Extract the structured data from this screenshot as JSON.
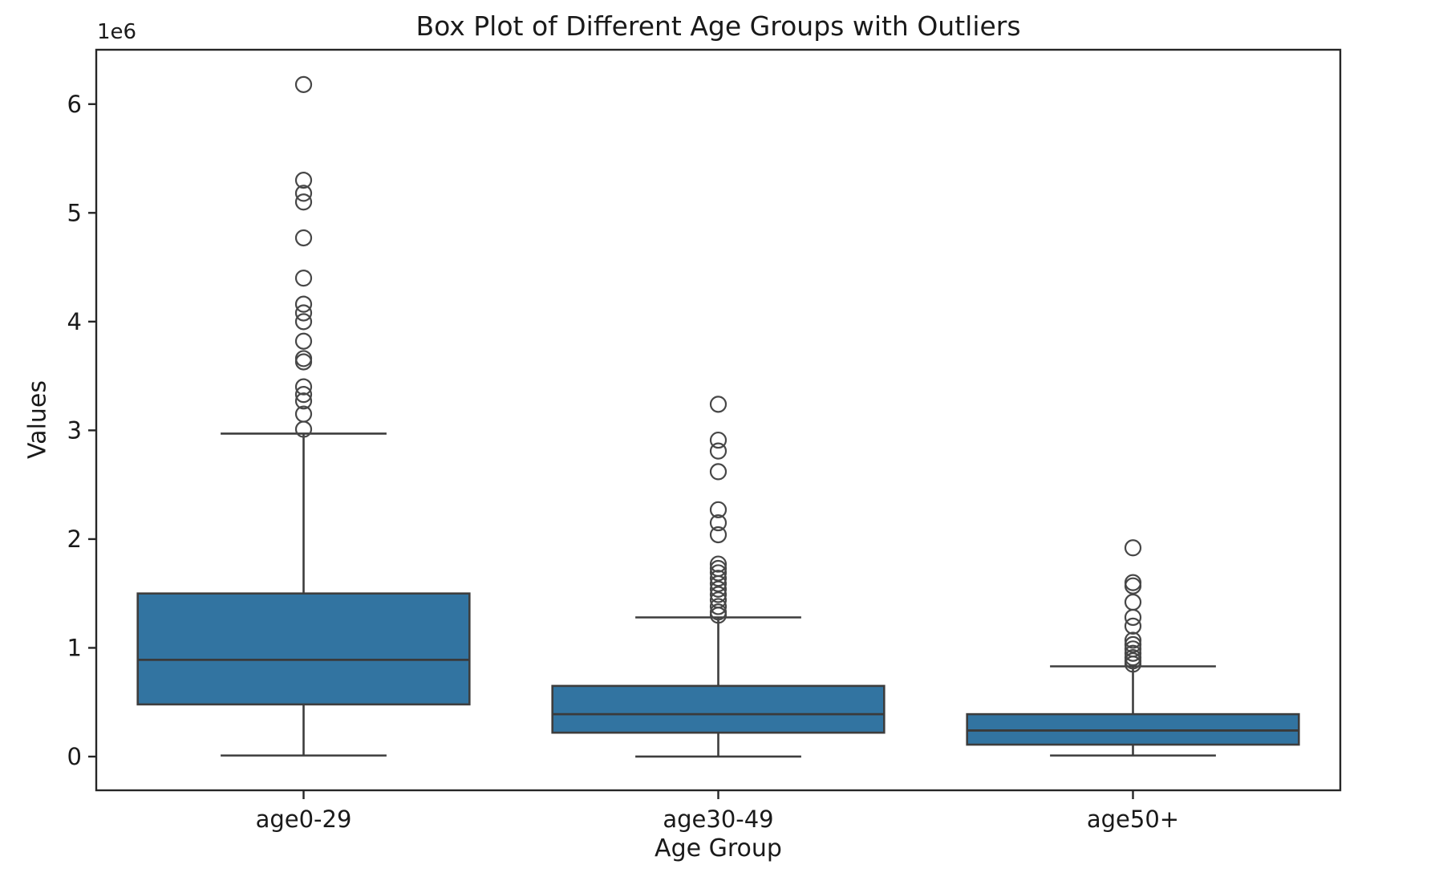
{
  "chart_data": {
    "type": "box",
    "title": "Box Plot of Different Age Groups with Outliers",
    "xlabel": "Age Group",
    "ylabel": "Values",
    "y_offset_text": "1e6",
    "values_unit_multiplier": 1000000,
    "categories": [
      "age0-29",
      "age30-49",
      "age50+"
    ],
    "positions": [
      0,
      1,
      2
    ],
    "xlim": [
      -0.5,
      2.5
    ],
    "ylim": [
      -0.31,
      6.5
    ],
    "yticks": [
      0,
      1,
      2,
      3,
      4,
      5,
      6
    ],
    "box_width": 0.8,
    "grid": false,
    "legend": null,
    "series": [
      {
        "name": "age0-29",
        "whislo": 0.01,
        "q1": 0.48,
        "med": 0.89,
        "q3": 1.5,
        "whishi": 2.97,
        "fliers": [
          3.01,
          3.15,
          3.27,
          3.33,
          3.4,
          3.63,
          3.66,
          3.82,
          4.0,
          4.08,
          4.16,
          4.4,
          4.77,
          5.1,
          5.18,
          5.3,
          6.18
        ]
      },
      {
        "name": "age30-49",
        "whislo": 0.0,
        "q1": 0.22,
        "med": 0.39,
        "q3": 0.65,
        "whishi": 1.28,
        "fliers": [
          1.3,
          1.33,
          1.38,
          1.44,
          1.49,
          1.54,
          1.59,
          1.64,
          1.69,
          1.73,
          1.77,
          2.04,
          2.15,
          2.27,
          2.62,
          2.81,
          2.91,
          3.24
        ]
      },
      {
        "name": "age50+",
        "whislo": 0.01,
        "q1": 0.11,
        "med": 0.24,
        "q3": 0.39,
        "whishi": 0.83,
        "fliers": [
          0.85,
          0.88,
          0.91,
          0.95,
          0.99,
          1.03,
          1.07,
          1.2,
          1.28,
          1.42,
          1.57,
          1.6,
          1.92
        ]
      }
    ],
    "colors": {
      "box_fill": "#3274a1",
      "box_edge": "#3d3d3d",
      "whisker": "#3d3d3d",
      "median": "#3a3a3a",
      "flier_edge": "#474747",
      "spine": "#262626",
      "text": "#1a1a1a"
    }
  }
}
